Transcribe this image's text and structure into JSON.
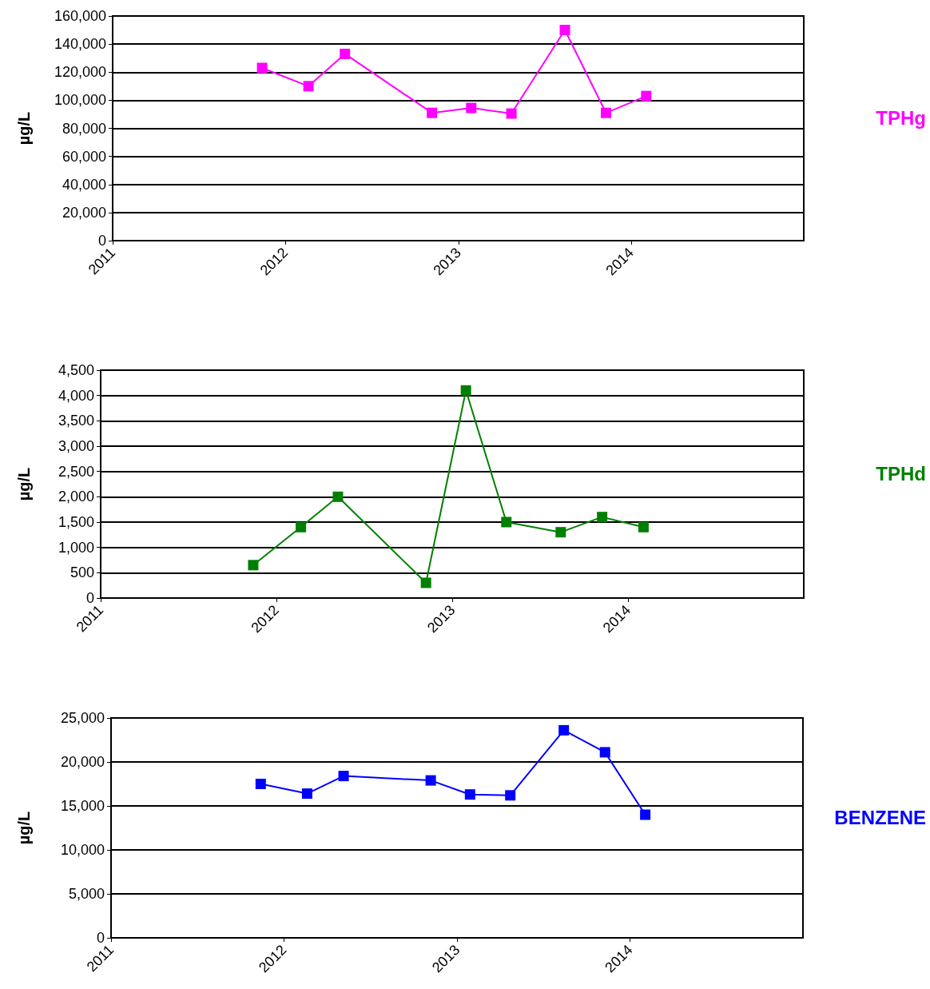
{
  "chart_data": [
    {
      "type": "line",
      "ylabel": "µg/L",
      "x": [
        "2011-11-13",
        "2012-02-19",
        "2012-05-06",
        "2012-11-06",
        "2013-01-28",
        "2013-04-23",
        "2013-08-14",
        "2013-11-09",
        "2014-02-02"
      ],
      "series": [
        {
          "name": "TPHg",
          "color": "#ff00ff",
          "values": [
            123000,
            110000,
            133000,
            91000,
            94500,
            90500,
            150000,
            91000,
            103000
          ]
        }
      ],
      "xlim": [
        "2011",
        "2015"
      ],
      "xticks": [
        "2011",
        "2012",
        "2013",
        "2014"
      ],
      "ylim": [
        0,
        160000
      ],
      "yticks": [
        {
          "value": 0,
          "label": "0"
        },
        {
          "value": 20000,
          "label": "20,000"
        },
        {
          "value": 40000,
          "label": "40,000"
        },
        {
          "value": 60000,
          "label": "60,000"
        },
        {
          "value": 80000,
          "label": "80,000"
        },
        {
          "value": 100000,
          "label": "100,000"
        },
        {
          "value": 120000,
          "label": "120,000"
        },
        {
          "value": 140000,
          "label": "140,000"
        },
        {
          "value": 160000,
          "label": "160,000"
        }
      ],
      "grid": "y",
      "legend": "right",
      "marker": "square"
    },
    {
      "type": "line",
      "ylabel": "µg/L",
      "x": [
        "2011-11-14",
        "2012-02-21",
        "2012-05-08",
        "2012-11-07",
        "2013-01-29",
        "2013-04-23",
        "2013-08-14",
        "2013-11-08",
        "2014-02-02"
      ],
      "series": [
        {
          "name": "TPHd",
          "color": "#008000",
          "values": [
            650,
            1400,
            2000,
            300,
            4100,
            1500,
            1300,
            1600,
            1400
          ]
        }
      ],
      "xlim": [
        "2011",
        "2015"
      ],
      "xticks": [
        "2011",
        "2012",
        "2013",
        "2014"
      ],
      "ylim": [
        0,
        4500
      ],
      "yticks": [
        {
          "value": 0,
          "label": "0"
        },
        {
          "value": 500,
          "label": "500"
        },
        {
          "value": 1000,
          "label": "1,000"
        },
        {
          "value": 1500,
          "label": "1,500"
        },
        {
          "value": 2000,
          "label": "2,000"
        },
        {
          "value": 2500,
          "label": "2,500"
        },
        {
          "value": 3000,
          "label": "3,000"
        },
        {
          "value": 3500,
          "label": "3,500"
        },
        {
          "value": 4000,
          "label": "4,000"
        },
        {
          "value": 4500,
          "label": "4,500"
        }
      ],
      "grid": "y",
      "legend": "right",
      "marker": "square"
    },
    {
      "type": "line",
      "ylabel": "µg/L",
      "x": [
        "2011-11-13",
        "2012-02-19",
        "2012-05-06",
        "2012-11-06",
        "2013-01-28",
        "2013-04-23",
        "2013-08-14",
        "2013-11-09",
        "2014-02-02"
      ],
      "series": [
        {
          "name": "BENZENE",
          "color": "#0000ff",
          "values": [
            17500,
            16400,
            18400,
            17900,
            16300,
            16200,
            23600,
            21100,
            14000
          ]
        }
      ],
      "xlim": [
        "2011",
        "2015"
      ],
      "xticks": [
        "2011",
        "2012",
        "2013",
        "2014"
      ],
      "ylim": [
        0,
        25000
      ],
      "yticks": [
        {
          "value": 0,
          "label": "0"
        },
        {
          "value": 5000,
          "label": "5,000"
        },
        {
          "value": 10000,
          "label": "10,000"
        },
        {
          "value": 15000,
          "label": "15,000"
        },
        {
          "value": 20000,
          "label": "20,000"
        },
        {
          "value": 25000,
          "label": "25,000"
        }
      ],
      "grid": "y",
      "legend": "right",
      "marker": "square"
    }
  ]
}
